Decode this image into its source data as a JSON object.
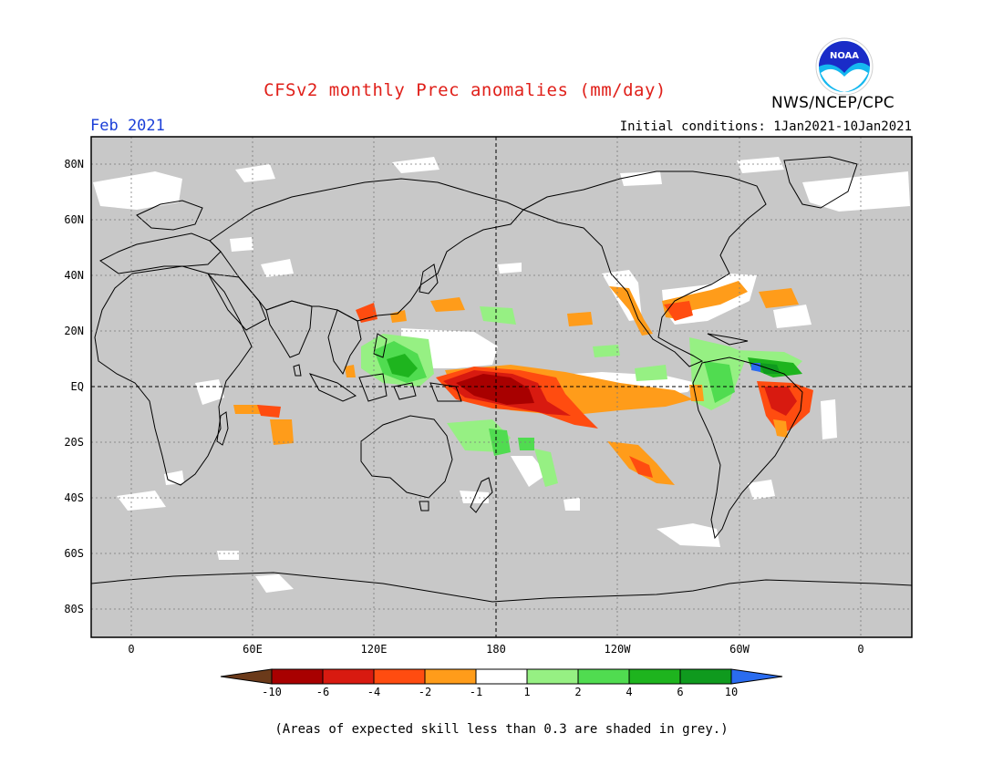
{
  "title": "CFSv2 monthly Prec anomalies (mm/day)",
  "agency": "NWS/NCEP/CPC",
  "logo_text": "NOAA",
  "month_label": "Feb 2021",
  "initial_conditions": "Initial conditions: 1Jan2021-10Jan2021",
  "footnote": "(Areas of expected skill less than 0.3 are shaded in grey.)",
  "lat_labels": [
    "80N",
    "60N",
    "40N",
    "20N",
    "EQ",
    "20S",
    "40S",
    "60S",
    "80S"
  ],
  "lon_labels": [
    "0",
    "60E",
    "120E",
    "180",
    "120W",
    "60W",
    "0"
  ],
  "colorbar": {
    "labels": [
      "-10",
      "-6",
      "-4",
      "-2",
      "-1",
      "1",
      "2",
      "4",
      "6",
      "10"
    ],
    "colors": [
      "#6b3a1a",
      "#a80000",
      "#d81a10",
      "#ff4c10",
      "#ff9c1a",
      "#ffffff",
      "#96f083",
      "#50dc50",
      "#1eb41e",
      "#0f9a1e",
      "#2a6cf0"
    ]
  },
  "colors": {
    "grey_mask": "#c8c8c8",
    "title": "#e0201a",
    "month": "#1b3fd8"
  }
}
